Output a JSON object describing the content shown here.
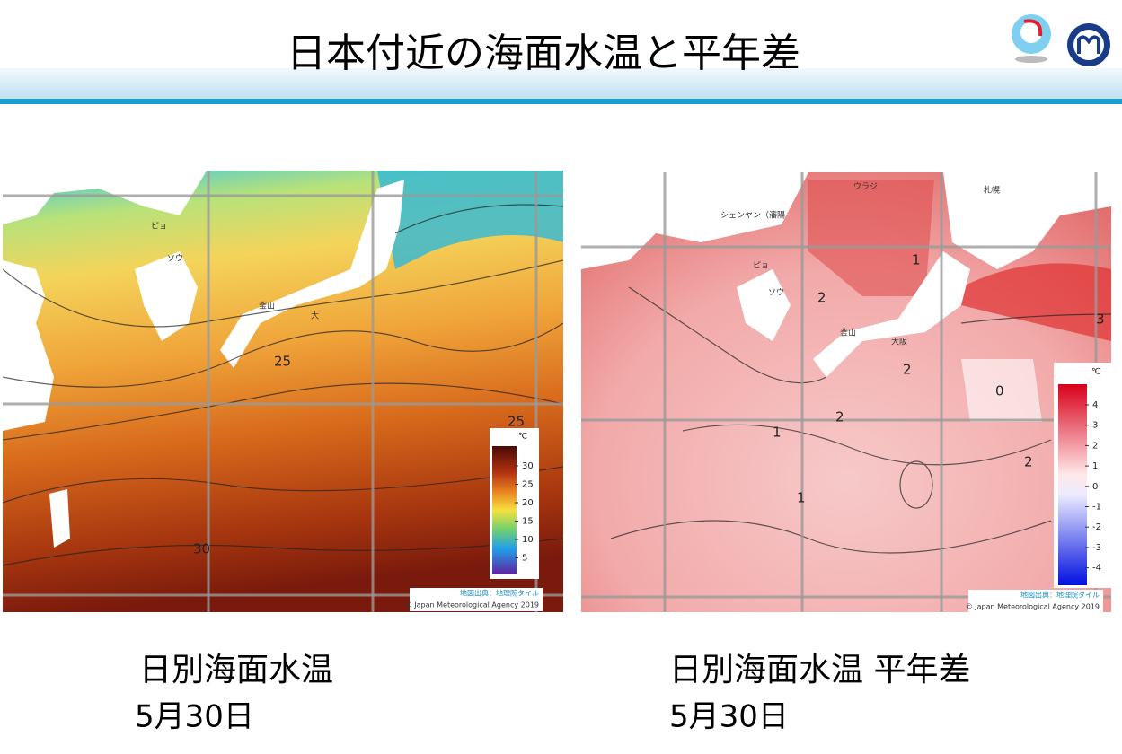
{
  "header": {
    "title": "日本付近の海面水温と平年差"
  },
  "left_map": {
    "legend_unit": "℃",
    "legend_ticks": [
      "30",
      "25",
      "20",
      "15",
      "10",
      "5"
    ],
    "contour_labels": [
      "25",
      "25",
      "30"
    ],
    "place_labels": [
      "ピョ",
      "ソウ",
      "釜山",
      "大"
    ],
    "credit": "地図出典：地理院タイル",
    "copyright": "© Japan Meteorological Agency 2019"
  },
  "right_map": {
    "legend_unit": "℃",
    "legend_ticks": [
      "4",
      "3",
      "2",
      "1",
      "0",
      "-1",
      "-2",
      "-3",
      "-4"
    ],
    "contour_labels": [
      "1",
      "2",
      "2",
      "0",
      "3",
      "2",
      "1",
      "1",
      "2"
    ],
    "place_labels": [
      "シェンヤン（瀋陽",
      "ピョ",
      "ソウ",
      "釜山",
      "大阪",
      "札幌",
      "ウラジ"
    ],
    "credit": "地図出典：地理院タイル",
    "copyright": "© Japan Meteorological Agency 2019"
  },
  "captions": [
    {
      "title": "日別海面水温",
      "date": "5月30日"
    },
    {
      "title": "日別海面水温 平年差",
      "date": "5月30日"
    }
  ]
}
